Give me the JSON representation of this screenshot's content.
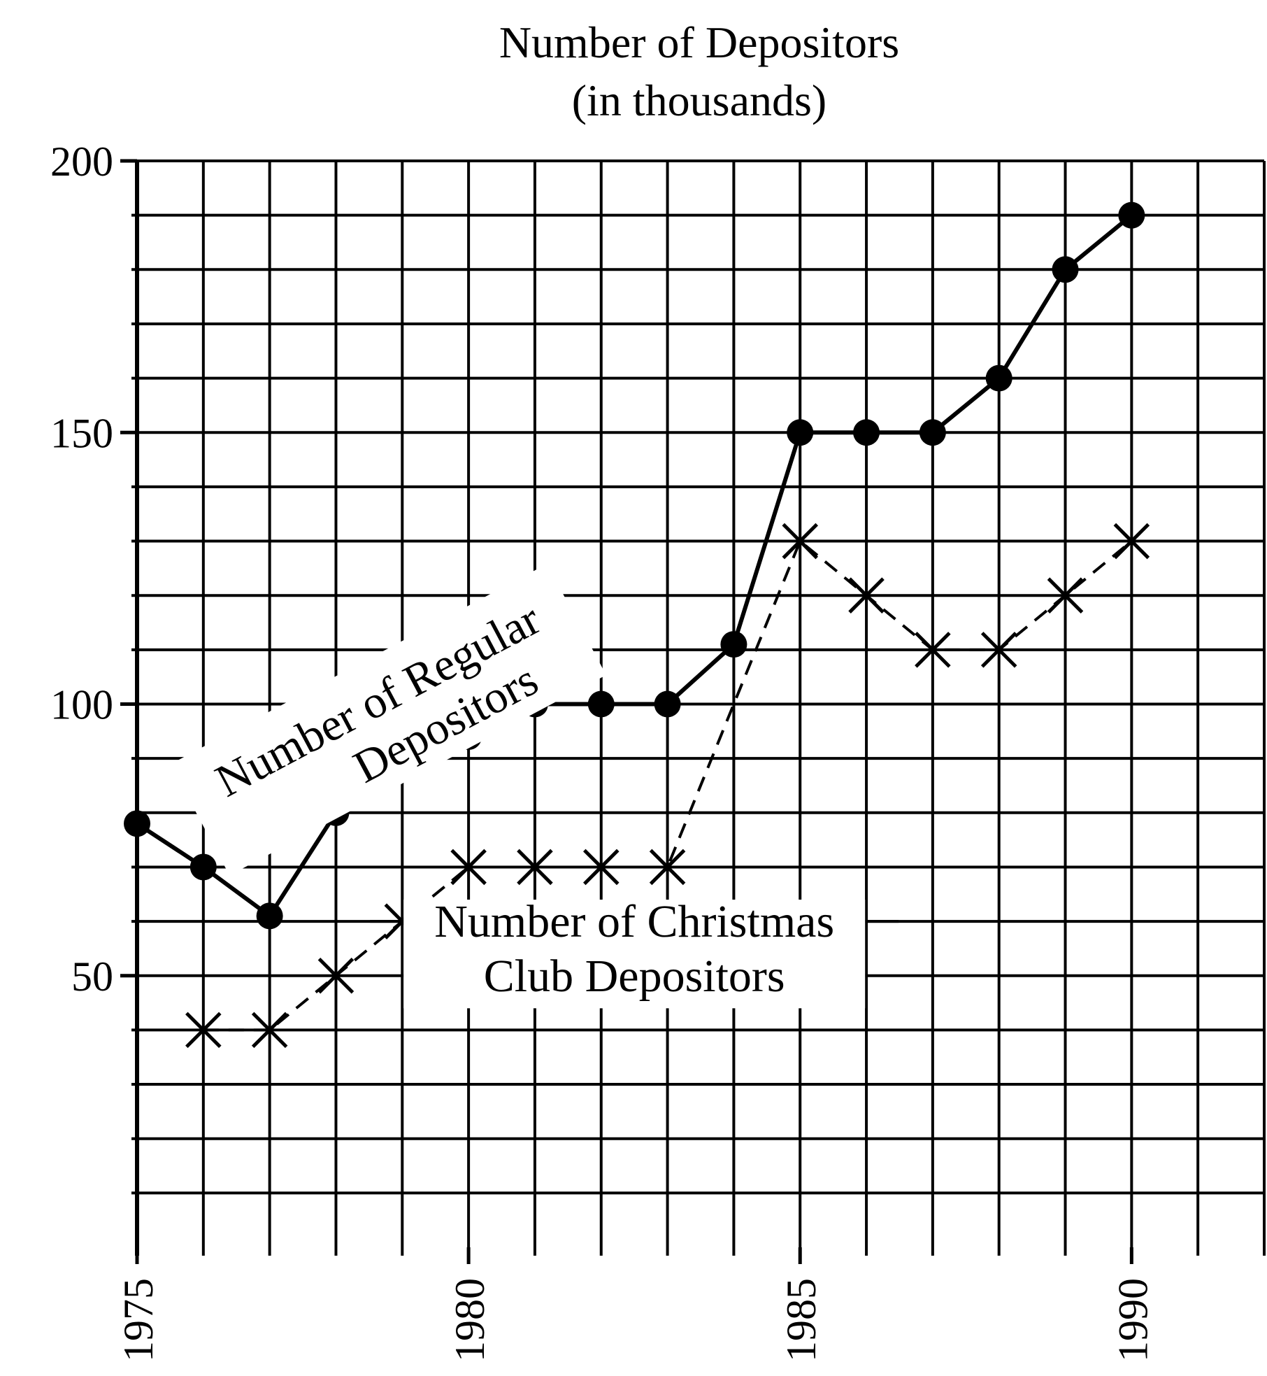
{
  "chart_data": {
    "type": "line",
    "title": "Number of Depositors",
    "subtitle": "(in thousands)",
    "xlabel": "",
    "ylabel": "",
    "x": [
      1975,
      1976,
      1977,
      1978,
      1979,
      1980,
      1981,
      1982,
      1983,
      1984,
      1985,
      1986,
      1987,
      1988,
      1989,
      1990
    ],
    "xlim": [
      1975,
      1992
    ],
    "ylim": [
      0,
      200
    ],
    "x_ticks": [
      "1975",
      "1980",
      "1985",
      "1990"
    ],
    "y_ticks": [
      "50",
      "100",
      "150",
      "200"
    ],
    "grid": true,
    "legend": "none",
    "series": [
      {
        "name": "Number of Regular Depositors",
        "style": "solid line with filled circle markers",
        "x": [
          1975,
          1976,
          1977,
          1978,
          1979,
          1980,
          1981,
          1982,
          1983,
          1984,
          1985,
          1986,
          1987,
          1988,
          1989,
          1990
        ],
        "values": [
          78,
          70,
          61,
          80,
          89,
          94,
          100,
          100,
          100,
          111,
          150,
          150,
          150,
          160,
          180,
          190
        ]
      },
      {
        "name": "Number of Christmas Club Depositors",
        "style": "dashed line with x markers",
        "x": [
          1976,
          1977,
          1978,
          1979,
          1980,
          1981,
          1982,
          1983,
          1985,
          1986,
          1987,
          1988,
          1989,
          1990
        ],
        "values": [
          40,
          40,
          50,
          60,
          70,
          70,
          70,
          70,
          130,
          120,
          110,
          110,
          120,
          130
        ]
      }
    ],
    "annotations": [
      {
        "text": [
          "Number of Regular",
          "Depositors"
        ],
        "series": 0
      },
      {
        "text": [
          "Number of Christmas",
          "Club Depositors"
        ],
        "series": 1
      }
    ],
    "colors": {
      "line": "#000000",
      "grid": "#000000",
      "background": "#ffffff"
    }
  }
}
